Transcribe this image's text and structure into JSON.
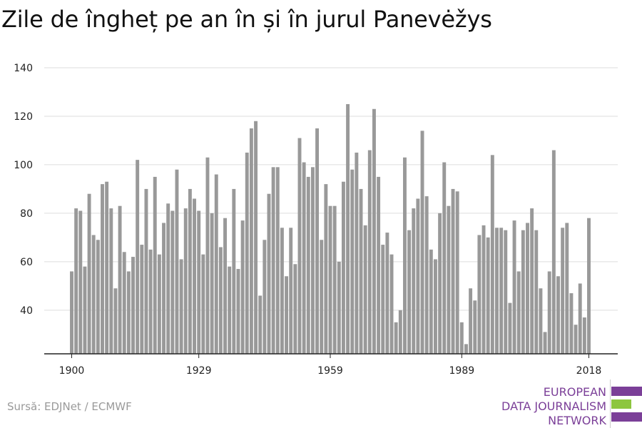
{
  "title": "Zile de îngheț pe an în și în jurul Panevėžys",
  "source": "Sursă: EDJNet / ECMWF",
  "logo": {
    "lines": [
      "EUROPEAN",
      "DATA JOURNALISM",
      "NETWORK"
    ],
    "colors": {
      "purple": "#7b3f98",
      "green": "#8dc63f"
    }
  },
  "colors": {
    "bar": "#999999",
    "grid": "#dddddd",
    "axis": "#222222",
    "text": "#222222"
  },
  "chart_data": {
    "type": "bar",
    "title": "Zile de îngheț pe an în și în jurul Panevėžys",
    "xlabel": "",
    "ylabel": "",
    "ylim": [
      22,
      140
    ],
    "y_ticks": [
      40,
      60,
      80,
      100,
      120,
      140
    ],
    "x_ticks": [
      1900,
      1929,
      1959,
      1989,
      2018
    ],
    "grid": true,
    "categories": [
      1900,
      1901,
      1902,
      1903,
      1904,
      1905,
      1906,
      1907,
      1908,
      1909,
      1910,
      1911,
      1912,
      1913,
      1914,
      1915,
      1916,
      1917,
      1918,
      1919,
      1920,
      1921,
      1922,
      1923,
      1924,
      1925,
      1926,
      1927,
      1928,
      1929,
      1930,
      1931,
      1932,
      1933,
      1934,
      1935,
      1936,
      1937,
      1938,
      1939,
      1940,
      1941,
      1942,
      1943,
      1944,
      1945,
      1946,
      1947,
      1948,
      1949,
      1950,
      1951,
      1952,
      1953,
      1954,
      1955,
      1956,
      1957,
      1958,
      1959,
      1960,
      1961,
      1962,
      1963,
      1964,
      1965,
      1966,
      1967,
      1968,
      1969,
      1970,
      1971,
      1972,
      1973,
      1974,
      1975,
      1976,
      1977,
      1978,
      1979,
      1980,
      1981,
      1982,
      1983,
      1984,
      1985,
      1986,
      1987,
      1988,
      1989,
      1990,
      1991,
      1992,
      1993,
      1994,
      1995,
      1996,
      1997,
      1998,
      1999,
      2000,
      2001,
      2002,
      2003,
      2004,
      2005,
      2006,
      2007,
      2008,
      2009,
      2010,
      2011,
      2012,
      2013,
      2014,
      2015,
      2016,
      2017,
      2018
    ],
    "values": [
      56,
      82,
      81,
      58,
      88,
      71,
      69,
      92,
      93,
      82,
      49,
      83,
      64,
      56,
      62,
      102,
      67,
      90,
      65,
      95,
      63,
      76,
      84,
      81,
      98,
      61,
      82,
      90,
      86,
      81,
      63,
      103,
      80,
      96,
      66,
      78,
      58,
      90,
      57,
      77,
      105,
      115,
      118,
      46,
      69,
      88,
      99,
      99,
      74,
      54,
      74,
      59,
      111,
      101,
      95,
      99,
      115,
      69,
      92,
      83,
      83,
      60,
      93,
      125,
      98,
      105,
      90,
      75,
      106,
      123,
      95,
      67,
      72,
      63,
      35,
      40,
      103,
      73,
      82,
      86,
      114,
      87,
      65,
      61,
      80,
      101,
      83,
      90,
      89,
      35,
      26,
      49,
      44,
      71,
      75,
      70,
      104,
      74,
      74,
      73,
      43,
      77,
      56,
      73,
      76,
      82,
      73,
      49,
      31,
      56,
      106,
      54,
      74,
      76,
      47,
      34,
      51,
      37,
      78
    ]
  }
}
